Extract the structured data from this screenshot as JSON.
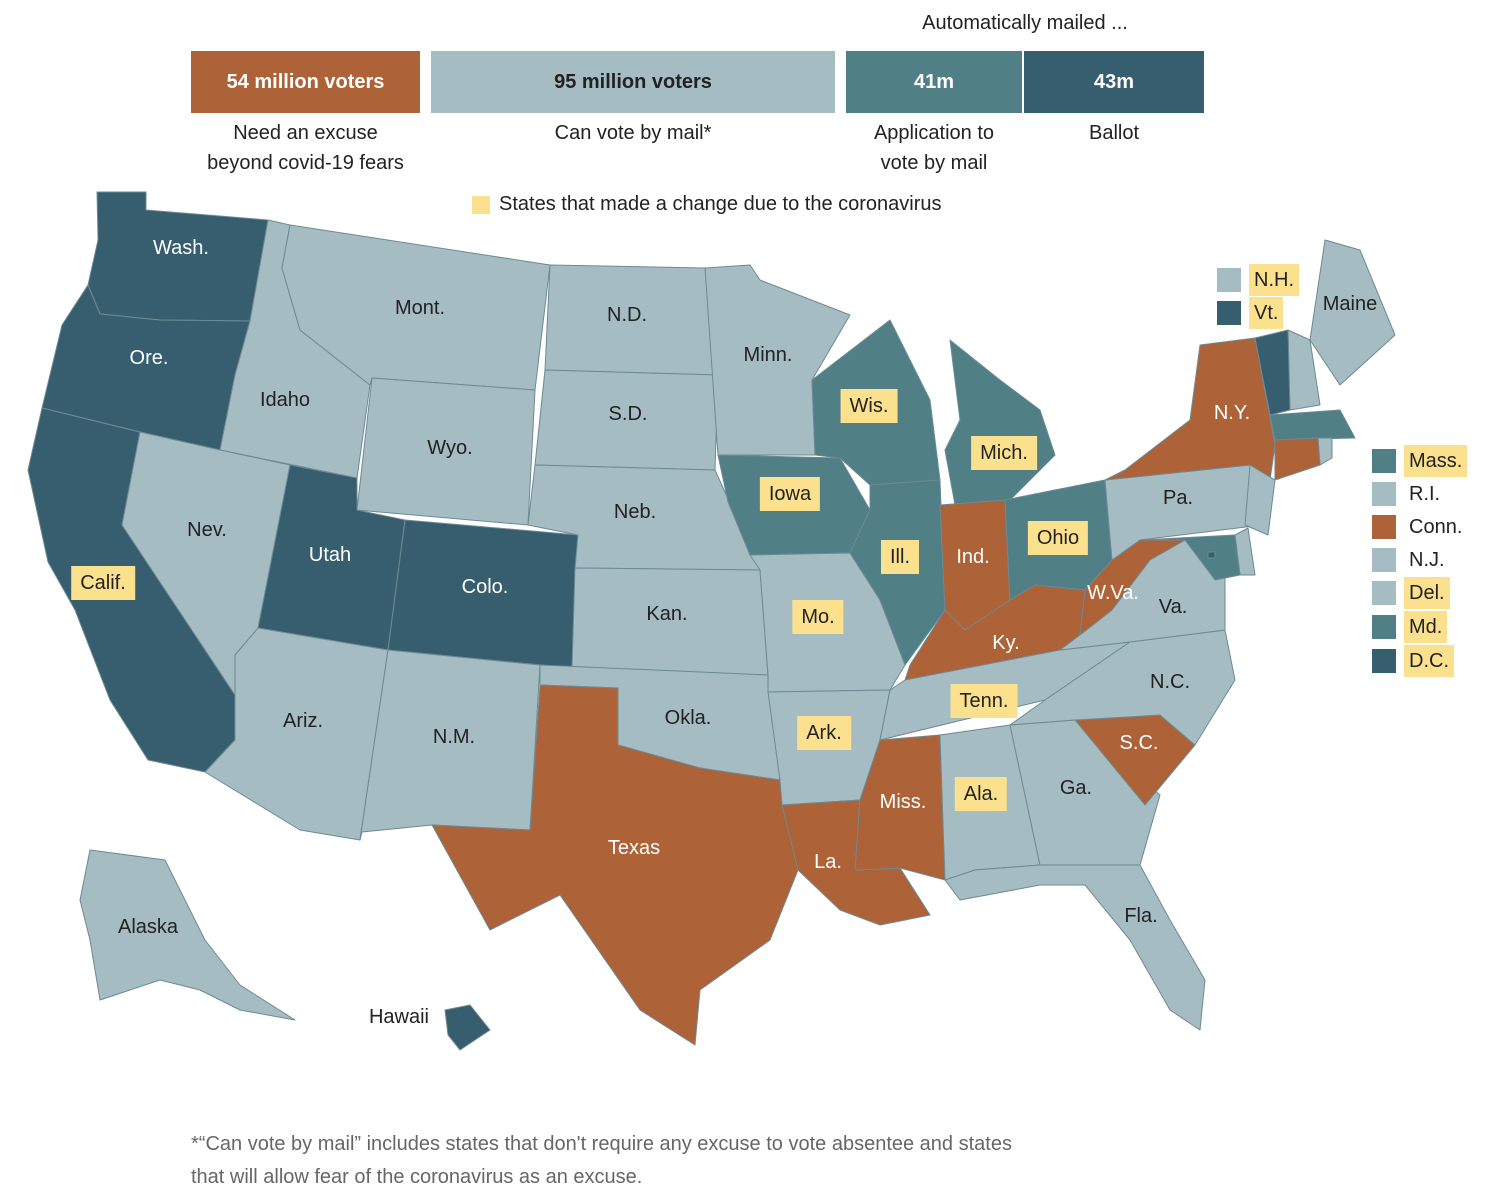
{
  "colors": {
    "excuse": "#ad6238",
    "mail": "#a5bcc2",
    "application": "#517f86",
    "ballot": "#375e6e",
    "changed": "#fbe18e",
    "border": "#6d8a94"
  },
  "header": {
    "auto_title": "Automatically mailed ...",
    "bars": [
      {
        "value": "54 million voters",
        "caption_1": "Need an excuse",
        "caption_2": "beyond covid-19 fears",
        "category": "excuse"
      },
      {
        "value": "95 million voters",
        "caption_1": "Can vote by mail*",
        "caption_2": "",
        "category": "mail"
      },
      {
        "value": "41m",
        "caption_1": "Application to",
        "caption_2": "vote by mail",
        "category": "application"
      },
      {
        "value": "43m",
        "caption_1": "Ballot",
        "caption_2": "",
        "category": "ballot"
      }
    ],
    "change_legend": "States that made a change due to the coronavirus"
  },
  "chart_data": {
    "type": "choropleth",
    "categories": [
      "Need an excuse beyond covid-19 fears",
      "Can vote by mail*",
      "Automatically mailed application to vote by mail",
      "Automatically mailed ballot"
    ],
    "bar_values_voters": [
      54000000,
      95000000,
      41000000,
      43000000
    ],
    "states": [
      {
        "label": "Wash.",
        "category": "ballot",
        "changed": false
      },
      {
        "label": "Ore.",
        "category": "ballot",
        "changed": false
      },
      {
        "label": "Calif.",
        "category": "ballot",
        "changed": true
      },
      {
        "label": "Idaho",
        "category": "mail",
        "changed": false
      },
      {
        "label": "Nev.",
        "category": "mail",
        "changed": false
      },
      {
        "label": "Mont.",
        "category": "mail",
        "changed": false
      },
      {
        "label": "Wyo.",
        "category": "mail",
        "changed": false
      },
      {
        "label": "Utah",
        "category": "ballot",
        "changed": false
      },
      {
        "label": "Colo.",
        "category": "ballot",
        "changed": false
      },
      {
        "label": "Ariz.",
        "category": "mail",
        "changed": false
      },
      {
        "label": "N.M.",
        "category": "mail",
        "changed": false
      },
      {
        "label": "N.D.",
        "category": "mail",
        "changed": false
      },
      {
        "label": "S.D.",
        "category": "mail",
        "changed": false
      },
      {
        "label": "Neb.",
        "category": "mail",
        "changed": false
      },
      {
        "label": "Kan.",
        "category": "mail",
        "changed": false
      },
      {
        "label": "Okla.",
        "category": "mail",
        "changed": false
      },
      {
        "label": "Texas",
        "category": "excuse",
        "changed": false
      },
      {
        "label": "Minn.",
        "category": "mail",
        "changed": false
      },
      {
        "label": "Iowa",
        "category": "application",
        "changed": true
      },
      {
        "label": "Mo.",
        "category": "mail",
        "changed": true
      },
      {
        "label": "Ark.",
        "category": "mail",
        "changed": true
      },
      {
        "label": "La.",
        "category": "excuse",
        "changed": false
      },
      {
        "label": "Wis.",
        "category": "application",
        "changed": true
      },
      {
        "label": "Ill.",
        "category": "application",
        "changed": true
      },
      {
        "label": "Mich.",
        "category": "application",
        "changed": true
      },
      {
        "label": "Ind.",
        "category": "excuse",
        "changed": false
      },
      {
        "label": "Ohio",
        "category": "application",
        "changed": true
      },
      {
        "label": "Ky.",
        "category": "excuse",
        "changed": false
      },
      {
        "label": "Tenn.",
        "category": "mail",
        "changed": true
      },
      {
        "label": "Miss.",
        "category": "excuse",
        "changed": false
      },
      {
        "label": "Ala.",
        "category": "mail",
        "changed": true
      },
      {
        "label": "Ga.",
        "category": "mail",
        "changed": false
      },
      {
        "label": "Fla.",
        "category": "mail",
        "changed": false
      },
      {
        "label": "S.C.",
        "category": "excuse",
        "changed": false
      },
      {
        "label": "N.C.",
        "category": "mail",
        "changed": false
      },
      {
        "label": "Va.",
        "category": "mail",
        "changed": false
      },
      {
        "label": "W.Va.",
        "category": "excuse",
        "changed": false
      },
      {
        "label": "Pa.",
        "category": "mail",
        "changed": false
      },
      {
        "label": "N.Y.",
        "category": "excuse",
        "changed": false
      },
      {
        "label": "Maine",
        "category": "mail",
        "changed": false
      },
      {
        "label": "Alaska",
        "category": "mail",
        "changed": false
      },
      {
        "label": "Hawaii",
        "category": "ballot",
        "changed": false
      },
      {
        "label": "N.H.",
        "category": "mail",
        "changed": true
      },
      {
        "label": "Vt.",
        "category": "ballot",
        "changed": true
      },
      {
        "label": "Mass.",
        "category": "application",
        "changed": true
      },
      {
        "label": "R.I.",
        "category": "mail",
        "changed": false
      },
      {
        "label": "Conn.",
        "category": "excuse",
        "changed": false
      },
      {
        "label": "N.J.",
        "category": "mail",
        "changed": false
      },
      {
        "label": "Del.",
        "category": "mail",
        "changed": true
      },
      {
        "label": "Md.",
        "category": "application",
        "changed": true
      },
      {
        "label": "D.C.",
        "category": "ballot",
        "changed": true
      }
    ]
  },
  "footnote": {
    "line1": "*“Can vote by mail” includes states that don't require any excuse to vote absentee and states",
    "line2": "that will allow fear of the coronavirus as an excuse."
  }
}
